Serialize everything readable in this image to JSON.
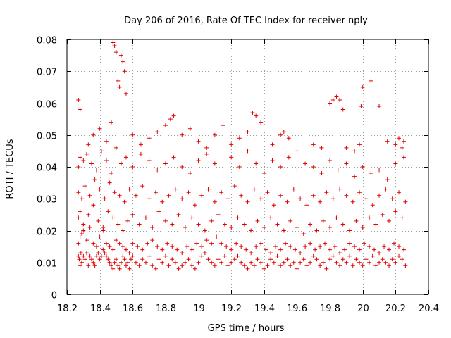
{
  "chart_data": {
    "type": "scatter",
    "title": "Day 206 of 2016, Rate Of TEC Index for receiver nply",
    "xlabel": "GPS time / hours",
    "ylabel": "ROTI / TECUs",
    "xlim": [
      18.2,
      20.4
    ],
    "ylim": [
      0,
      0.08
    ],
    "xticks": [
      18.2,
      18.4,
      18.6,
      18.8,
      19,
      19.2,
      19.4,
      19.6,
      19.8,
      20,
      20.2,
      20.4
    ],
    "xtick_labels": [
      "18.2",
      "18.4",
      "18.6",
      "18.8",
      "19",
      "19.2",
      "19.4",
      "19.6",
      "19.8",
      "20",
      "20.2",
      "20.4"
    ],
    "yticks": [
      0,
      0.01,
      0.02,
      0.03,
      0.04,
      0.05,
      0.06,
      0.07,
      0.08
    ],
    "ytick_labels": [
      "0",
      "0.01",
      "0.02",
      "0.03",
      "0.04",
      "0.05",
      "0.06",
      "0.07",
      "0.08"
    ],
    "grid": true,
    "marker": "+",
    "marker_color": "#e00000",
    "series": [
      {
        "name": "ROTI",
        "x": [
          18.27,
          18.275,
          18.28,
          18.285,
          18.29,
          18.3,
          18.31,
          18.32,
          18.33,
          18.34,
          18.35,
          18.36,
          18.37,
          18.38,
          18.39,
          18.4,
          18.41,
          18.42,
          18.43,
          18.44,
          18.45,
          18.46,
          18.47,
          18.48,
          18.49,
          18.5,
          18.51,
          18.52,
          18.53,
          18.54,
          18.55,
          18.56,
          18.57,
          18.58,
          18.59,
          18.6,
          18.62,
          18.64,
          18.66,
          18.68,
          18.7,
          18.72,
          18.74,
          18.76,
          18.78,
          18.8,
          18.82,
          18.84,
          18.86,
          18.88,
          18.9,
          18.92,
          18.94,
          18.96,
          18.98,
          19.0,
          19.02,
          19.04,
          19.06,
          19.08,
          19.1,
          19.12,
          19.14,
          19.16,
          19.18,
          19.2,
          19.22,
          19.24,
          19.26,
          19.28,
          19.3,
          19.32,
          19.34,
          19.36,
          19.38,
          19.4,
          19.42,
          19.44,
          19.46,
          19.48,
          19.5,
          19.52,
          19.54,
          19.56,
          19.58,
          19.6,
          19.62,
          19.64,
          19.66,
          19.68,
          19.7,
          19.72,
          19.74,
          19.76,
          19.78,
          19.8,
          19.82,
          19.84,
          19.86,
          19.88,
          19.9,
          19.92,
          19.94,
          19.96,
          19.98,
          20.0,
          20.02,
          20.04,
          20.06,
          20.08,
          20.1,
          20.12,
          20.14,
          20.16,
          20.18,
          20.2,
          20.22,
          20.24,
          20.26,
          18.27,
          18.28,
          18.29,
          18.3,
          18.32,
          18.34,
          18.36,
          18.38,
          18.4,
          18.42,
          18.44,
          18.46,
          18.48,
          18.5,
          18.52,
          18.54,
          18.56,
          18.58,
          18.6,
          18.63,
          18.66,
          18.69,
          18.72,
          18.75,
          18.78,
          18.81,
          18.84,
          18.87,
          18.9,
          18.93,
          18.96,
          18.99,
          19.02,
          19.05,
          19.08,
          19.11,
          19.14,
          19.17,
          19.2,
          19.23,
          19.26,
          19.29,
          19.32,
          19.35,
          19.38,
          19.41,
          19.44,
          19.47,
          19.5,
          19.53,
          19.56,
          19.59,
          19.62,
          19.65,
          19.68,
          19.71,
          19.74,
          19.77,
          19.8,
          19.83,
          19.86,
          19.89,
          19.92,
          19.95,
          19.98,
          20.01,
          20.04,
          20.07,
          20.1,
          20.13,
          20.16,
          20.19,
          20.22,
          20.25,
          18.27,
          18.28,
          18.3,
          18.33,
          18.36,
          18.39,
          18.42,
          18.45,
          18.48,
          18.51,
          18.54,
          18.57,
          18.6,
          18.64,
          18.68,
          18.72,
          18.76,
          18.8,
          18.84,
          18.88,
          18.92,
          18.96,
          19.0,
          19.04,
          19.08,
          19.12,
          19.16,
          19.2,
          19.24,
          19.28,
          19.32,
          19.36,
          19.4,
          19.44,
          19.48,
          19.52,
          19.56,
          19.6,
          19.64,
          19.68,
          19.72,
          19.76,
          19.8,
          19.84,
          19.88,
          19.92,
          19.96,
          20.0,
          20.04,
          20.08,
          20.12,
          20.16,
          20.2,
          20.24,
          18.27,
          18.29,
          18.31,
          18.34,
          18.37,
          18.4,
          18.43,
          18.46,
          18.49,
          18.52,
          18.55,
          18.58,
          18.62,
          18.66,
          18.7,
          18.74,
          18.78,
          18.82,
          18.86,
          18.9,
          18.94,
          18.98,
          19.02,
          19.06,
          19.1,
          19.14,
          19.18,
          19.22,
          19.26,
          19.3,
          19.34,
          19.38,
          19.42,
          19.46,
          19.5,
          19.54,
          19.58,
          19.62,
          19.66,
          19.7,
          19.74,
          19.78,
          19.82,
          19.86,
          19.9,
          19.94,
          19.98,
          20.02,
          20.06,
          20.1,
          20.14,
          20.18,
          20.22,
          20.26,
          18.27,
          18.28,
          18.3,
          18.32,
          18.35,
          18.38,
          18.41,
          18.44,
          18.47,
          18.5,
          18.53,
          18.56,
          18.6,
          18.65,
          18.7,
          18.75,
          18.8,
          18.85,
          18.9,
          18.95,
          19.0,
          19.05,
          19.1,
          19.15,
          19.2,
          19.25,
          19.3,
          19.35,
          19.4,
          19.45,
          19.5,
          19.55,
          19.6,
          19.65,
          19.7,
          19.75,
          19.8,
          19.85,
          19.9,
          19.95,
          20.0,
          20.05,
          20.1,
          20.15,
          20.2,
          20.25,
          18.27,
          18.28,
          18.33,
          18.36,
          18.4,
          18.44,
          18.47,
          18.48,
          18.49,
          18.5,
          18.51,
          18.52,
          18.53,
          18.54,
          18.55,
          18.56,
          18.6,
          18.65,
          18.7,
          18.75,
          18.8,
          18.83,
          18.85,
          18.9,
          18.95,
          19.0,
          19.05,
          19.1,
          19.15,
          19.2,
          19.25,
          19.3,
          19.33,
          19.35,
          19.38,
          19.45,
          19.5,
          19.52,
          19.55,
          19.6,
          19.7,
          19.75,
          19.8,
          19.82,
          19.84,
          19.86,
          19.88,
          19.9,
          19.95,
          19.98,
          19.99,
          20.0,
          20.05,
          20.1,
          20.15,
          20.2,
          20.22,
          20.24,
          20.25
        ],
        "y": [
          0.012,
          0.011,
          0.009,
          0.013,
          0.01,
          0.012,
          0.011,
          0.013,
          0.009,
          0.012,
          0.011,
          0.01,
          0.009,
          0.012,
          0.013,
          0.011,
          0.012,
          0.014,
          0.013,
          0.012,
          0.011,
          0.01,
          0.009,
          0.008,
          0.01,
          0.011,
          0.009,
          0.008,
          0.01,
          0.012,
          0.011,
          0.009,
          0.01,
          0.008,
          0.011,
          0.012,
          0.01,
          0.009,
          0.011,
          0.01,
          0.012,
          0.009,
          0.008,
          0.011,
          0.01,
          0.012,
          0.009,
          0.011,
          0.01,
          0.008,
          0.009,
          0.01,
          0.011,
          0.009,
          0.008,
          0.01,
          0.012,
          0.013,
          0.011,
          0.01,
          0.009,
          0.011,
          0.01,
          0.012,
          0.009,
          0.01,
          0.011,
          0.012,
          0.01,
          0.009,
          0.008,
          0.01,
          0.009,
          0.011,
          0.01,
          0.008,
          0.009,
          0.011,
          0.01,
          0.012,
          0.009,
          0.01,
          0.011,
          0.009,
          0.01,
          0.008,
          0.01,
          0.011,
          0.009,
          0.01,
          0.012,
          0.011,
          0.009,
          0.01,
          0.008,
          0.011,
          0.012,
          0.01,
          0.009,
          0.011,
          0.01,
          0.012,
          0.009,
          0.011,
          0.01,
          0.009,
          0.011,
          0.01,
          0.012,
          0.009,
          0.01,
          0.011,
          0.01,
          0.009,
          0.011,
          0.01,
          0.012,
          0.011,
          0.009,
          0.016,
          0.018,
          0.019,
          0.02,
          0.017,
          0.021,
          0.016,
          0.015,
          0.018,
          0.02,
          0.016,
          0.015,
          0.014,
          0.017,
          0.016,
          0.015,
          0.014,
          0.013,
          0.016,
          0.015,
          0.014,
          0.016,
          0.017,
          0.015,
          0.014,
          0.016,
          0.015,
          0.014,
          0.013,
          0.015,
          0.014,
          0.016,
          0.015,
          0.017,
          0.016,
          0.018,
          0.016,
          0.015,
          0.014,
          0.016,
          0.015,
          0.014,
          0.013,
          0.015,
          0.016,
          0.014,
          0.013,
          0.015,
          0.014,
          0.016,
          0.015,
          0.014,
          0.013,
          0.015,
          0.016,
          0.014,
          0.015,
          0.016,
          0.014,
          0.015,
          0.013,
          0.014,
          0.016,
          0.015,
          0.014,
          0.016,
          0.015,
          0.014,
          0.013,
          0.015,
          0.014,
          0.016,
          0.015,
          0.014,
          0.024,
          0.026,
          0.022,
          0.025,
          0.028,
          0.023,
          0.021,
          0.026,
          0.024,
          0.022,
          0.02,
          0.023,
          0.025,
          0.022,
          0.024,
          0.021,
          0.026,
          0.023,
          0.022,
          0.025,
          0.021,
          0.024,
          0.022,
          0.02,
          0.023,
          0.025,
          0.022,
          0.021,
          0.024,
          0.022,
          0.02,
          0.023,
          0.021,
          0.024,
          0.022,
          0.02,
          0.023,
          0.021,
          0.019,
          0.022,
          0.02,
          0.023,
          0.021,
          0.024,
          0.022,
          0.02,
          0.023,
          0.021,
          0.024,
          0.022,
          0.025,
          0.023,
          0.026,
          0.024,
          0.032,
          0.03,
          0.034,
          0.031,
          0.036,
          0.033,
          0.03,
          0.035,
          0.032,
          0.031,
          0.029,
          0.033,
          0.031,
          0.034,
          0.03,
          0.032,
          0.029,
          0.031,
          0.033,
          0.03,
          0.032,
          0.028,
          0.031,
          0.033,
          0.029,
          0.032,
          0.03,
          0.034,
          0.031,
          0.029,
          0.033,
          0.03,
          0.032,
          0.028,
          0.031,
          0.029,
          0.033,
          0.03,
          0.028,
          0.031,
          0.029,
          0.032,
          0.03,
          0.033,
          0.031,
          0.029,
          0.032,
          0.03,
          0.028,
          0.031,
          0.033,
          0.03,
          0.032,
          0.029,
          0.04,
          0.043,
          0.042,
          0.044,
          0.041,
          0.039,
          0.045,
          0.042,
          0.038,
          0.046,
          0.041,
          0.043,
          0.04,
          0.044,
          0.042,
          0.039,
          0.041,
          0.043,
          0.04,
          0.038,
          0.042,
          0.044,
          0.041,
          0.039,
          0.043,
          0.04,
          0.045,
          0.041,
          0.038,
          0.042,
          0.04,
          0.043,
          0.039,
          0.041,
          0.04,
          0.038,
          0.042,
          0.039,
          0.041,
          0.037,
          0.04,
          0.038,
          0.039,
          0.036,
          0.041,
          0.043,
          0.061,
          0.058,
          0.047,
          0.05,
          0.052,
          0.048,
          0.054,
          0.079,
          0.078,
          0.076,
          0.067,
          0.065,
          0.075,
          0.073,
          0.07,
          0.063,
          0.05,
          0.047,
          0.049,
          0.051,
          0.053,
          0.055,
          0.056,
          0.05,
          0.052,
          0.048,
          0.046,
          0.05,
          0.053,
          0.047,
          0.049,
          0.051,
          0.057,
          0.056,
          0.054,
          0.047,
          0.05,
          0.051,
          0.049,
          0.045,
          0.047,
          0.046,
          0.06,
          0.061,
          0.062,
          0.061,
          0.058,
          0.046,
          0.045,
          0.047,
          0.059,
          0.065,
          0.067,
          0.059,
          0.048,
          0.047,
          0.049,
          0.046,
          0.048
        ]
      }
    ]
  }
}
